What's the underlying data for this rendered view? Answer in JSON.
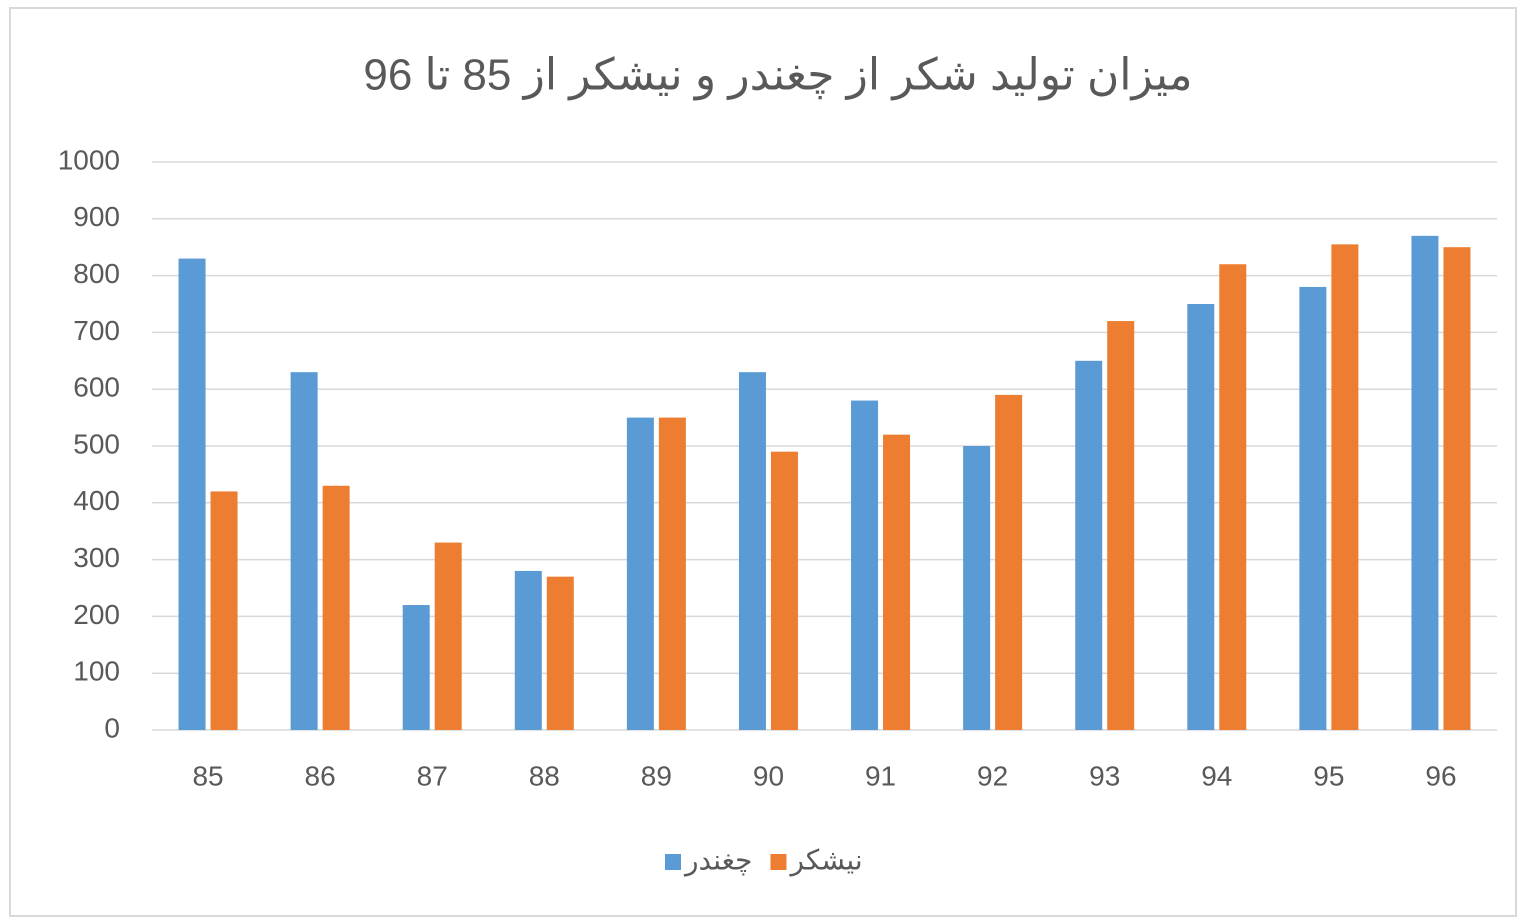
{
  "chart_data": {
    "type": "bar",
    "title": "میزان تولید شکر از چغندر و نیشکر از 85 تا 96",
    "categories": [
      "85",
      "86",
      "87",
      "88",
      "89",
      "90",
      "91",
      "92",
      "93",
      "94",
      "95",
      "96"
    ],
    "series": [
      {
        "name": "چغندر",
        "color": "#5b9bd5",
        "values": [
          830,
          630,
          220,
          280,
          550,
          630,
          580,
          500,
          650,
          750,
          780,
          870
        ]
      },
      {
        "name": "نیشکر",
        "color": "#ed7d31",
        "values": [
          420,
          430,
          330,
          270,
          550,
          490,
          520,
          590,
          720,
          820,
          855,
          850
        ]
      }
    ],
    "ylim": [
      0,
      1000
    ],
    "yticks": [
      0,
      100,
      200,
      300,
      400,
      500,
      600,
      700,
      800,
      900,
      1000
    ],
    "grid": true,
    "legend": "bottom"
  }
}
